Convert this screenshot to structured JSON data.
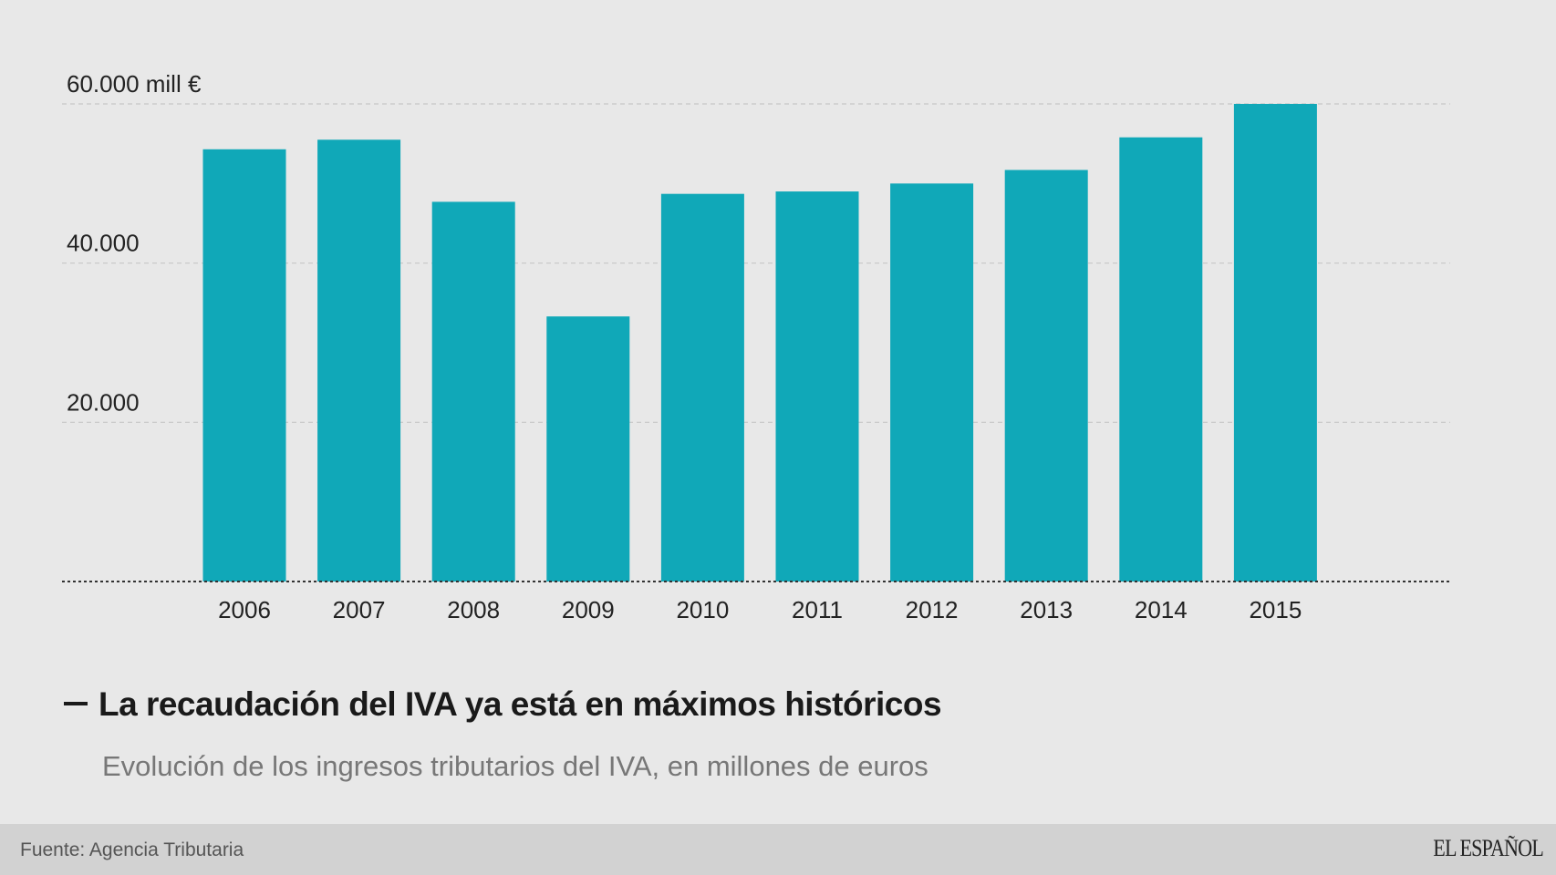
{
  "chart_data": {
    "type": "bar",
    "title": "La recaudación del IVA ya está en máximos históricos",
    "subtitle": "Evolución de los ingresos tributarios del IVA, en millones de euros",
    "xlabel": "",
    "ylabel": "",
    "categories": [
      "2006",
      "2007",
      "2008",
      "2009",
      "2010",
      "2011",
      "2012",
      "2013",
      "2014",
      "2015"
    ],
    "values": [
      54300,
      55500,
      47700,
      33300,
      48700,
      49000,
      50000,
      51700,
      55800,
      60000
    ],
    "ylim": [
      0,
      60000
    ],
    "yticks": [
      {
        "value": 20000,
        "label": "20.000"
      },
      {
        "value": 40000,
        "label": "40.000"
      },
      {
        "value": 60000,
        "label": "60.000 mill €"
      }
    ],
    "grid": true,
    "bar_color": "#10a8b8",
    "legend": "none"
  },
  "header": {
    "title_dash": "—",
    "title": "La recaudación del IVA ya está en máximos históricos",
    "subtitle": "Evolución de los ingresos tributarios del IVA, en millones de euros"
  },
  "footer": {
    "source": "Fuente: Agencia Tributaria",
    "logo": "EL ESPAÑOL"
  },
  "colors": {
    "background": "#e8e8e8",
    "footer_background": "#d2d2d2",
    "bar": "#10a8b8"
  }
}
